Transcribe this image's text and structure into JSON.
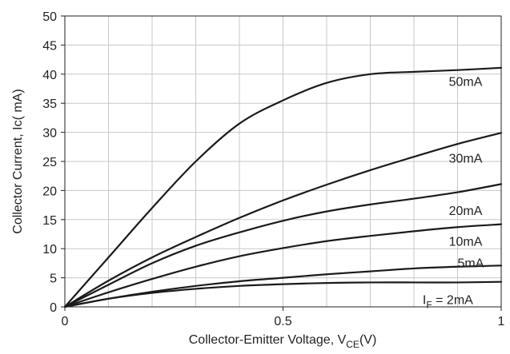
{
  "chart_data": {
    "type": "line",
    "xlabel": "Collector-Emitter Voltage, V",
    "xlabel_sub": "CE",
    "xlabel_suffix": "(V)",
    "ylabel": "Collector Current, Ic( mA)",
    "xlim": [
      0,
      1
    ],
    "ylim": [
      0,
      50
    ],
    "x_ticks": [
      "0",
      "0.5",
      "1"
    ],
    "y_ticks": [
      "0",
      "5",
      "10",
      "15",
      "20",
      "25",
      "30",
      "35",
      "40",
      "45",
      "50"
    ],
    "grid": true,
    "series": [
      {
        "name": "50mA",
        "x": [
          0,
          0.1,
          0.2,
          0.3,
          0.4,
          0.5,
          0.6,
          0.7,
          0.8,
          0.9,
          1.0
        ],
        "y": [
          0,
          8.5,
          17,
          25,
          31.5,
          35.5,
          38.5,
          40,
          40.4,
          40.7,
          41.1
        ]
      },
      {
        "name": "30mA",
        "x": [
          0,
          0.1,
          0.2,
          0.3,
          0.4,
          0.5,
          0.6,
          0.7,
          0.8,
          0.9,
          1.0
        ],
        "y": [
          0,
          4.5,
          8.5,
          12,
          15.3,
          18.3,
          21,
          23.5,
          25.8,
          28,
          29.9
        ]
      },
      {
        "name": "20mA",
        "x": [
          0,
          0.1,
          0.2,
          0.3,
          0.4,
          0.5,
          0.6,
          0.7,
          0.8,
          0.9,
          1.0
        ],
        "y": [
          0,
          3.8,
          7.5,
          10.5,
          12.8,
          14.8,
          16.4,
          17.6,
          18.6,
          19.7,
          21.1
        ]
      },
      {
        "name": "10mA",
        "x": [
          0,
          0.1,
          0.2,
          0.3,
          0.4,
          0.5,
          0.6,
          0.7,
          0.8,
          0.9,
          1.0
        ],
        "y": [
          0,
          2.5,
          4.8,
          6.9,
          8.7,
          10.1,
          11.3,
          12.2,
          13,
          13.7,
          14.2
        ]
      },
      {
        "name": "5mA",
        "x": [
          0,
          0.1,
          0.2,
          0.3,
          0.4,
          0.5,
          0.6,
          0.7,
          0.8,
          0.9,
          1.0
        ],
        "y": [
          0,
          1.4,
          2.6,
          3.6,
          4.4,
          5,
          5.6,
          6.1,
          6.6,
          6.9,
          7.1
        ]
      },
      {
        "name": "I_F = 2mA",
        "x": [
          0,
          0.1,
          0.2,
          0.3,
          0.4,
          0.5,
          0.6,
          0.7,
          0.8,
          0.9,
          1.0
        ],
        "y": [
          0,
          1.4,
          2.4,
          3.1,
          3.6,
          3.9,
          4.1,
          4.2,
          4.2,
          4.2,
          4.3
        ]
      }
    ],
    "series_labels": [
      {
        "name": "50mA",
        "text": "50mA",
        "at_x": 0.88,
        "at_y": 38.8
      },
      {
        "name": "30mA",
        "text": "30mA",
        "at_x": 0.88,
        "at_y": 25.6
      },
      {
        "name": "20mA",
        "text": "20mA",
        "at_x": 0.88,
        "at_y": 16.6
      },
      {
        "name": "10mA",
        "text": "10mA",
        "at_x": 0.88,
        "at_y": 11.3
      },
      {
        "name": "5mA",
        "text": "5mA",
        "at_x": 0.9,
        "at_y": 7.6
      },
      {
        "name": "I_F = 2mA",
        "text_main": "I",
        "text_sub": "F",
        "text_rest": " = 2mA",
        "at_x": 0.82,
        "at_y": 1.3
      }
    ]
  }
}
